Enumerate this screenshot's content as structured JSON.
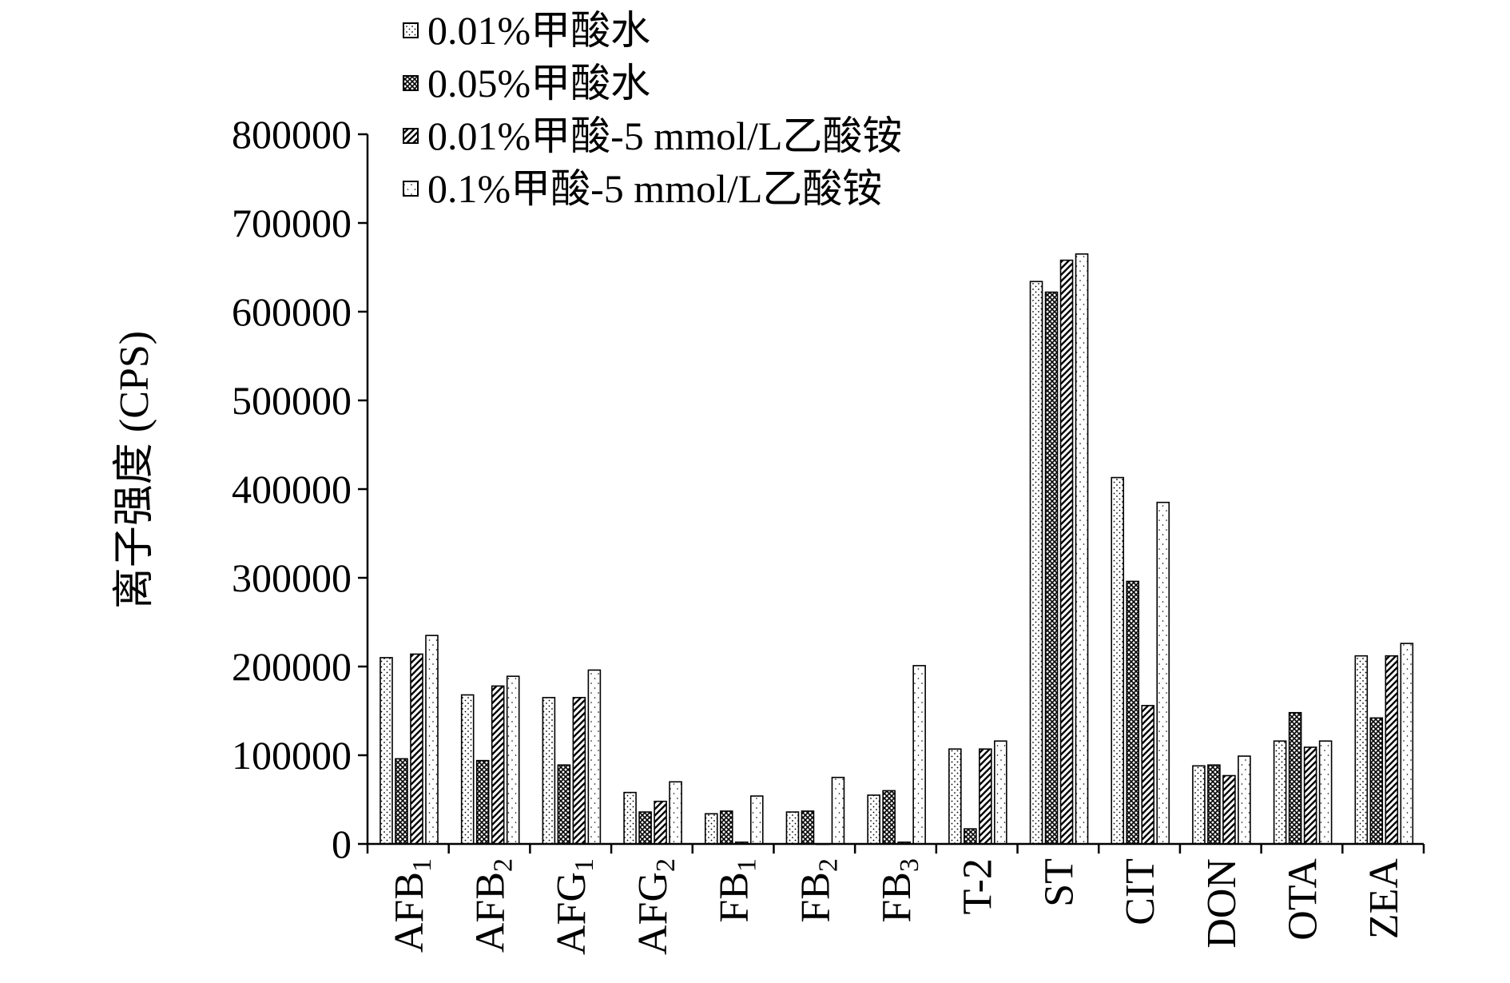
{
  "chart_data": {
    "type": "bar",
    "ylabel": "离子强度 (CPS)",
    "ylim": [
      0,
      800000
    ],
    "yticks": [
      0,
      100000,
      200000,
      300000,
      400000,
      500000,
      600000,
      700000,
      800000
    ],
    "ytick_labels": [
      "0",
      "100000",
      "200000",
      "300000",
      "400000",
      "500000",
      "600000",
      "700000",
      "800000"
    ],
    "categories": [
      {
        "base": "AFB",
        "sub": "1"
      },
      {
        "base": "AFB",
        "sub": "2"
      },
      {
        "base": "AFG",
        "sub": "1"
      },
      {
        "base": "AFG",
        "sub": "2"
      },
      {
        "base": "FB",
        "sub": "1"
      },
      {
        "base": "FB",
        "sub": "2"
      },
      {
        "base": "FB",
        "sub": "3"
      },
      {
        "base": "T-2",
        "sub": ""
      },
      {
        "base": "ST",
        "sub": ""
      },
      {
        "base": "CIT",
        "sub": ""
      },
      {
        "base": "DON",
        "sub": ""
      },
      {
        "base": "OTA",
        "sub": ""
      },
      {
        "base": "ZEA",
        "sub": ""
      }
    ],
    "series": [
      {
        "name": "0.01%甲酸水",
        "pattern": "dots",
        "values": [
          210000,
          168000,
          165000,
          58000,
          34000,
          36000,
          55000,
          107000,
          634000,
          413000,
          88000,
          116000,
          212000
        ]
      },
      {
        "name": "0.05%甲酸水",
        "pattern": "cross",
        "values": [
          96000,
          94000,
          89000,
          36000,
          37000,
          37000,
          60000,
          17000,
          622000,
          296000,
          89000,
          148000,
          142000
        ]
      },
      {
        "name": "0.01%甲酸-5 mmol/L乙酸铵",
        "pattern": "diagonal",
        "values": [
          214000,
          178000,
          165000,
          48000,
          2000,
          0,
          2000,
          107000,
          658000,
          156000,
          77000,
          109000,
          212000
        ]
      },
      {
        "name": "0.1%甲酸-5 mmol/L乙酸铵",
        "pattern": "sparse",
        "values": [
          235000,
          189000,
          196000,
          70000,
          54000,
          75000,
          201000,
          116000,
          665000,
          385000,
          99000,
          116000,
          226000
        ]
      }
    ],
    "legend_position": "top",
    "grid": false
  }
}
